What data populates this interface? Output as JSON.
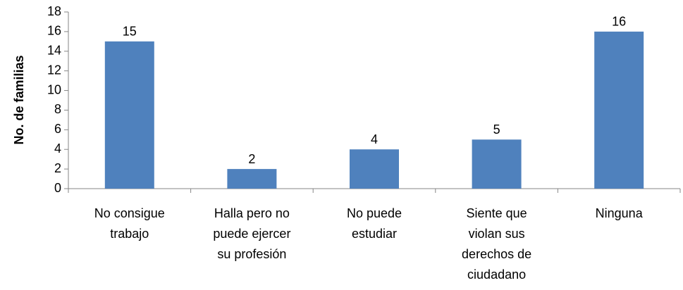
{
  "chart_data": {
    "type": "bar",
    "y_label": "No. de familias",
    "categories": [
      "No consigue trabajo",
      "Halla pero no puede ejercer su profesión",
      "No puede estudiar",
      "Siente que violan sus derechos de ciudadano",
      "Ninguna"
    ],
    "values": [
      15,
      2,
      4,
      5,
      16
    ],
    "color": "#4f81bd",
    "ylim": [
      0,
      18
    ],
    "yticks": [
      0,
      2,
      4,
      6,
      8,
      10,
      12,
      14,
      16,
      18
    ]
  }
}
